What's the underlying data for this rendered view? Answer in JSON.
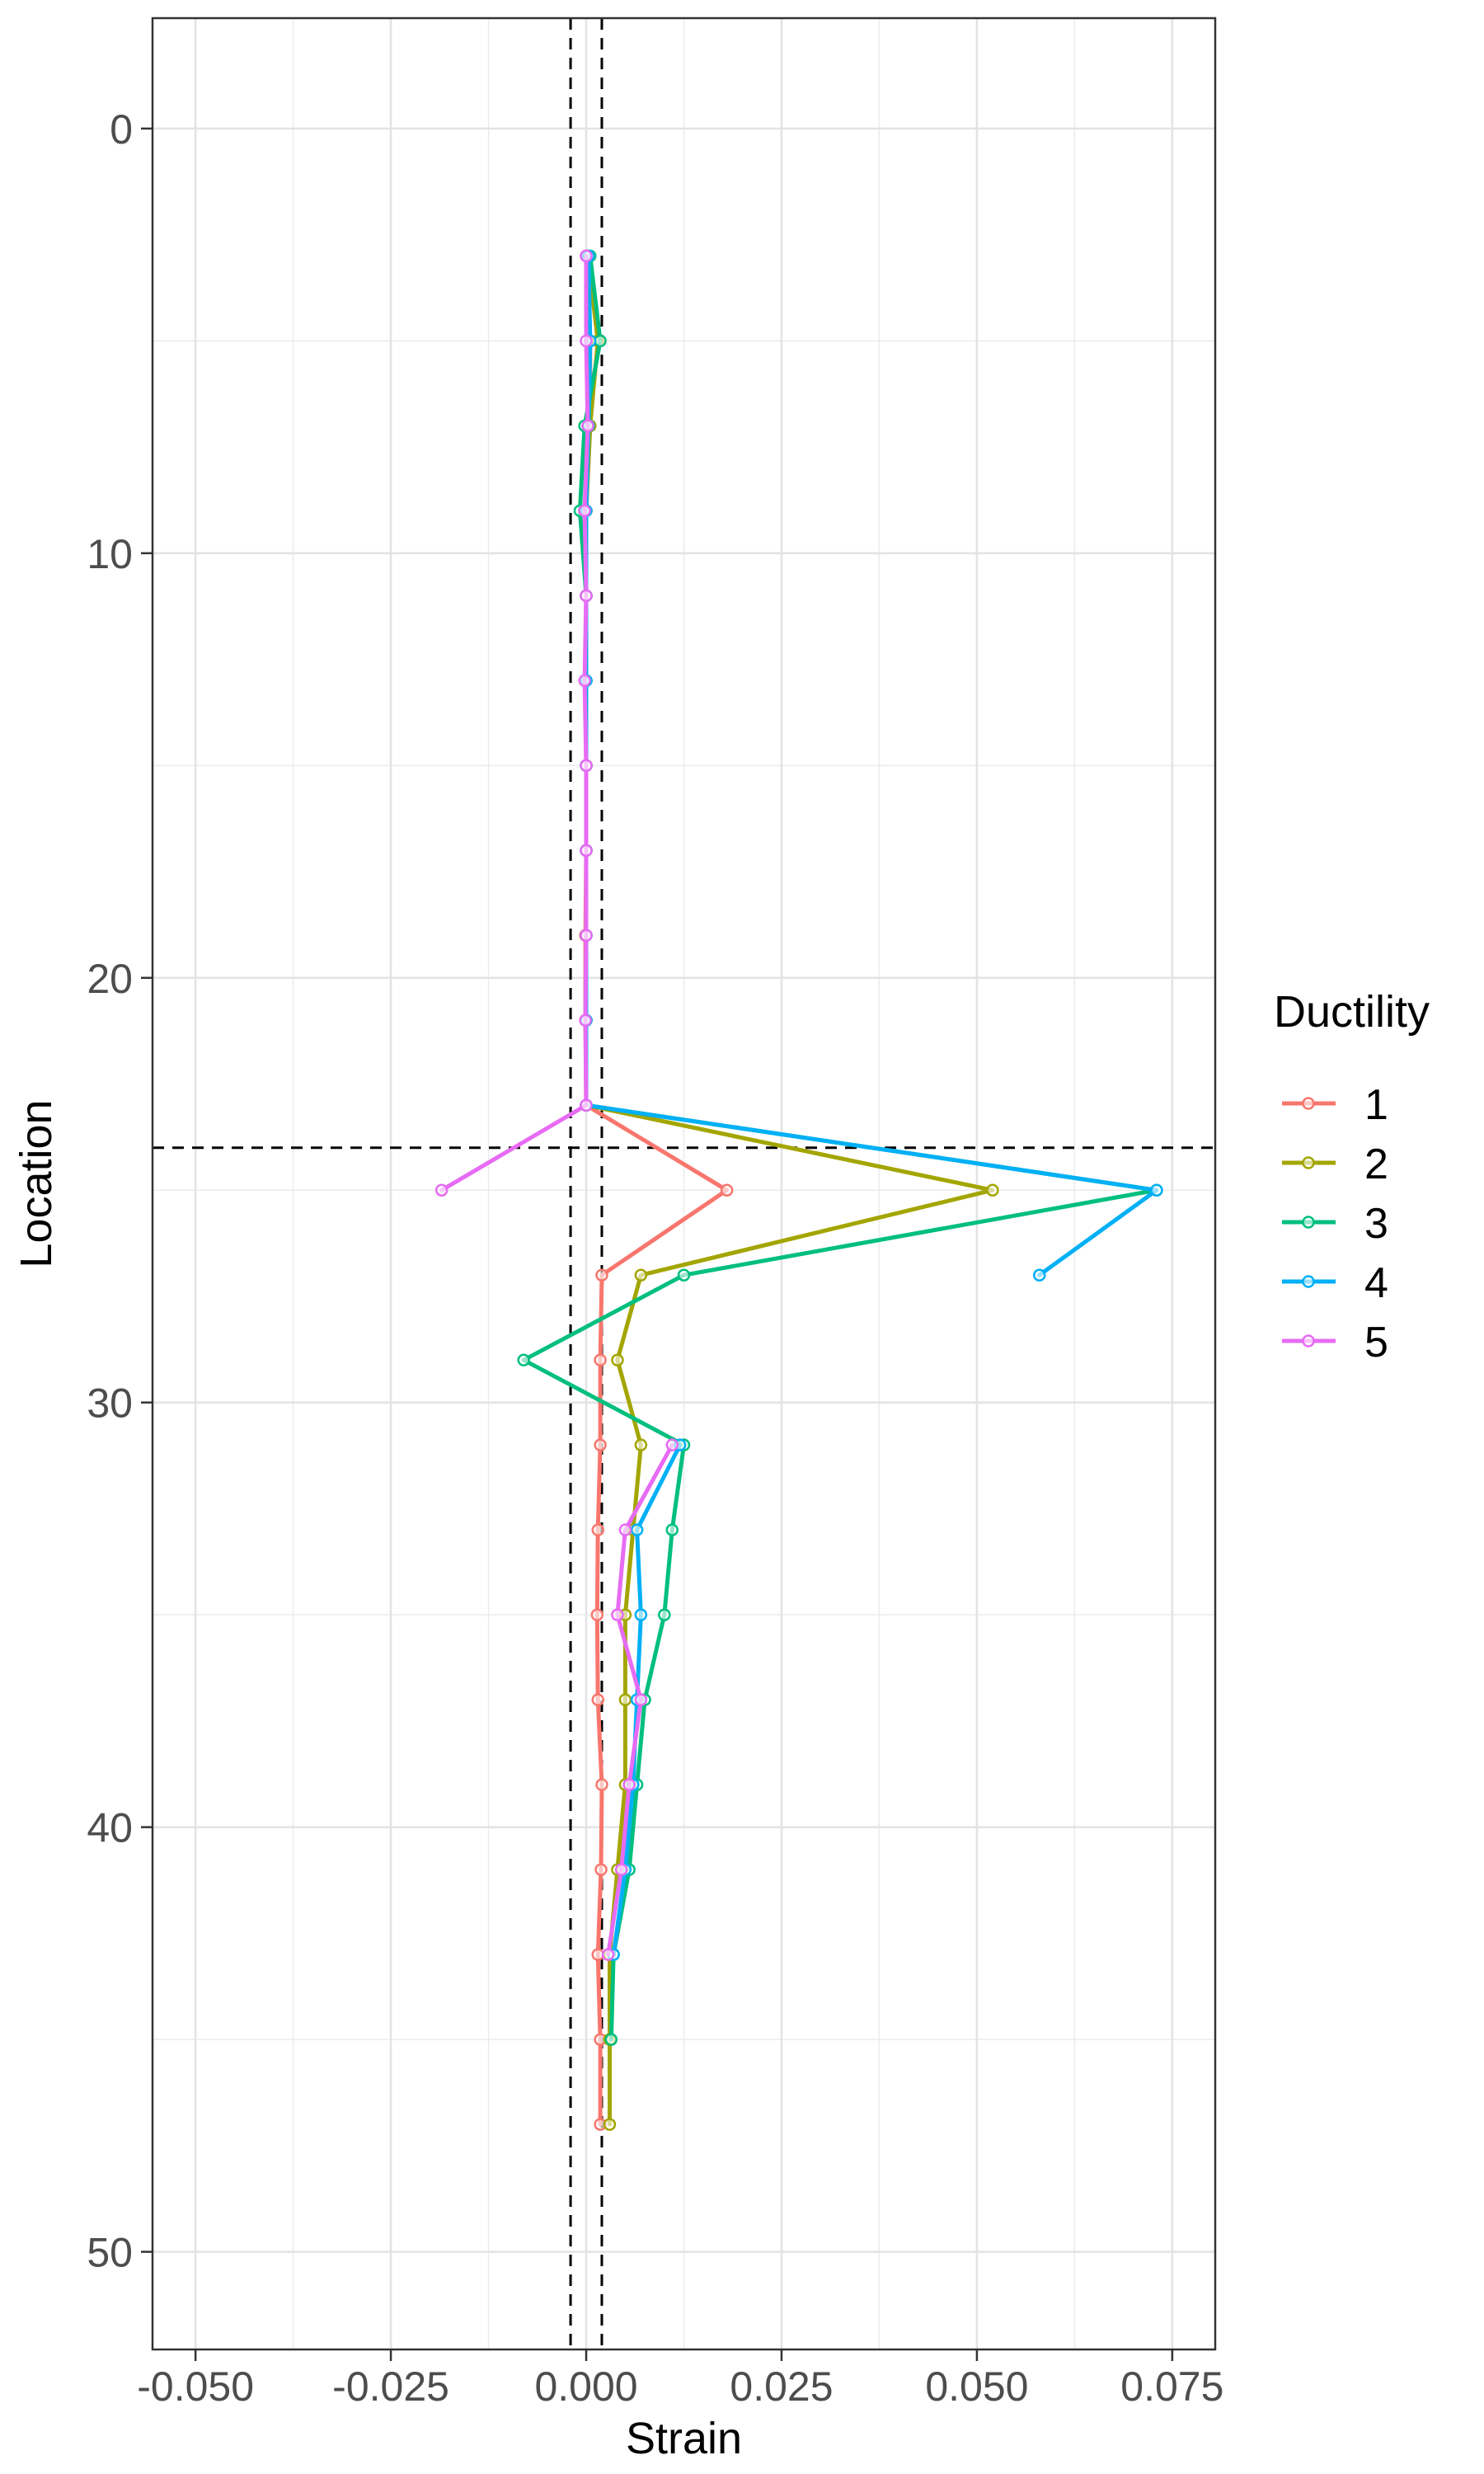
{
  "chart_data": {
    "type": "line",
    "title": "",
    "xlabel": "Strain",
    "ylabel": "Location",
    "xlim": [
      -0.0555,
      0.0805
    ],
    "ylim": [
      52.3,
      -2.6
    ],
    "y_reversed": true,
    "grid": true,
    "x_ticks": [
      -0.05,
      -0.025,
      0.0,
      0.025,
      0.05,
      0.075
    ],
    "x_tick_labels": [
      "-0.050",
      "-0.025",
      "0.000",
      "0.025",
      "0.050",
      "0.075"
    ],
    "y_ticks": [
      0,
      10,
      20,
      30,
      40,
      50
    ],
    "y_tick_labels": [
      "0",
      "10",
      "20",
      "30",
      "40",
      "50"
    ],
    "reference_lines": {
      "vertical": [
        -0.002,
        0.002
      ],
      "horizontal": [
        24
      ]
    },
    "legend": {
      "title": "Ductility",
      "position": "right"
    },
    "series": [
      {
        "name": "1",
        "color": "#F8766D",
        "points": [
          [
            0.0,
            3
          ],
          [
            0.0005,
            5
          ],
          [
            0.0005,
            7
          ],
          [
            0.0,
            9
          ],
          [
            0.0,
            11
          ],
          [
            -0.0001,
            13
          ],
          [
            0.0,
            15
          ],
          [
            0.0,
            17
          ],
          [
            -0.0001,
            19
          ],
          [
            -0.0001,
            21
          ],
          [
            0.0,
            23
          ],
          [
            0.018,
            25
          ],
          [
            0.002,
            27
          ],
          [
            0.0018,
            29
          ],
          [
            0.0018,
            31
          ],
          [
            0.0015,
            33
          ],
          [
            0.0014,
            35
          ],
          [
            0.0015,
            37
          ],
          [
            0.002,
            39
          ],
          [
            0.0019,
            41
          ],
          [
            0.0015,
            43
          ],
          [
            0.0018,
            45
          ],
          [
            0.0018,
            47
          ]
        ]
      },
      {
        "name": "2",
        "color": "#A3A500",
        "points": [
          [
            0.0002,
            3
          ],
          [
            0.0015,
            5
          ],
          [
            0.0005,
            7
          ],
          [
            0.0,
            9
          ],
          [
            0.0,
            11
          ],
          [
            0.0,
            13
          ],
          [
            0.0,
            15
          ],
          [
            0.0,
            17
          ],
          [
            0.0,
            19
          ],
          [
            0.0,
            21
          ],
          [
            0.0,
            23
          ],
          [
            0.052,
            25
          ],
          [
            0.007,
            27
          ],
          [
            0.004,
            29
          ],
          [
            0.007,
            31
          ],
          [
            0.006,
            33
          ],
          [
            0.005,
            35
          ],
          [
            0.005,
            37
          ],
          [
            0.005,
            39
          ],
          [
            0.004,
            41
          ],
          [
            0.003,
            43
          ],
          [
            0.003,
            45
          ],
          [
            0.003,
            47
          ]
        ]
      },
      {
        "name": "3",
        "color": "#00BF7D",
        "points": [
          [
            0.0005,
            3
          ],
          [
            0.0018,
            5
          ],
          [
            -0.0002,
            7
          ],
          [
            -0.0008,
            9
          ],
          [
            0.0,
            11
          ],
          [
            0.0,
            13
          ],
          [
            0.0,
            15
          ],
          [
            0.0,
            17
          ],
          [
            0.0,
            19
          ],
          [
            0.0,
            21
          ],
          [
            0.0,
            23
          ],
          [
            0.073,
            25
          ],
          [
            0.0125,
            27
          ],
          [
            -0.008,
            29
          ],
          [
            0.0125,
            31
          ],
          [
            0.011,
            33
          ],
          [
            0.01,
            35
          ],
          [
            0.0075,
            37
          ],
          [
            0.0065,
            39
          ],
          [
            0.0055,
            41
          ],
          [
            0.0035,
            43
          ],
          [
            0.0032,
            45
          ]
        ]
      },
      {
        "name": "4",
        "color": "#00B0F6",
        "points": [
          [
            0.0003,
            3
          ],
          [
            0.0005,
            5
          ],
          [
            0.0003,
            7
          ],
          [
            0.0,
            9
          ],
          [
            0.0,
            11
          ],
          [
            0.0,
            13
          ],
          [
            0.0,
            15
          ],
          [
            0.0,
            17
          ],
          [
            0.0,
            19
          ],
          [
            0.0,
            21
          ],
          [
            0.0,
            23
          ],
          [
            0.073,
            25
          ],
          [
            0.058,
            27
          ]
        ]
      },
      {
        "name": "5",
        "color": "#E76BF3",
        "points": [
          [
            0.0,
            3
          ],
          [
            0.0,
            5
          ],
          [
            0.0002,
            7
          ],
          [
            -0.0002,
            9
          ],
          [
            0.0,
            11
          ],
          [
            -0.0002,
            13
          ],
          [
            0.0,
            15
          ],
          [
            0.0,
            17
          ],
          [
            0.0,
            19
          ],
          [
            -0.0001,
            21
          ],
          [
            0.0,
            23
          ],
          [
            -0.0185,
            25
          ]
        ]
      },
      {
        "name": "4",
        "color": "#00B0F6",
        "legend": false,
        "points": [
          [
            0.012,
            31
          ],
          [
            0.0065,
            33
          ],
          [
            0.007,
            35
          ],
          [
            0.0065,
            37
          ],
          [
            0.006,
            39
          ],
          [
            0.005,
            41
          ],
          [
            0.0035,
            43
          ]
        ]
      },
      {
        "name": "5",
        "color": "#E76BF3",
        "legend": false,
        "points": [
          [
            0.011,
            31
          ],
          [
            0.005,
            33
          ],
          [
            0.004,
            35
          ],
          [
            0.007,
            37
          ],
          [
            0.0055,
            39
          ],
          [
            0.0045,
            41
          ],
          [
            0.0028,
            43
          ]
        ]
      }
    ]
  }
}
